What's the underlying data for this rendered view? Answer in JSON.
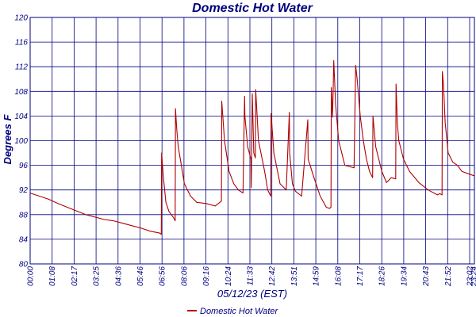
{
  "chart_data": {
    "type": "line",
    "title": "Domestic Hot Water",
    "xlabel": "05/12/23 (EST)",
    "ylabel": "Degrees F",
    "ylim": [
      80,
      120
    ],
    "yticks": [
      80,
      84,
      88,
      92,
      96,
      100,
      104,
      108,
      112,
      116,
      120
    ],
    "xlim_minutes": [
      0,
      1440
    ],
    "xtick_labels": [
      "00:00",
      "01:08",
      "02:17",
      "03:25",
      "04:36",
      "05:46",
      "06:56",
      "08:06",
      "09:16",
      "10:24",
      "11:33",
      "12:42",
      "13:51",
      "14:59",
      "16:08",
      "17:17",
      "18:26",
      "19:34",
      "20:43",
      "21:52",
      "23:02",
      "23:24"
    ],
    "grid": true,
    "legend_position": "bottom-center",
    "colors": {
      "series": "#b00000",
      "grid": "#00007f",
      "text": "#00007f"
    },
    "series": [
      {
        "name": "Domestic Hot Water",
        "x": [
          "00:00",
          "00:30",
          "01:00",
          "01:30",
          "02:00",
          "02:30",
          "03:00",
          "03:30",
          "04:00",
          "04:30",
          "05:00",
          "05:30",
          "06:00",
          "06:30",
          "07:00",
          "07:05",
          "07:06",
          "07:12",
          "07:20",
          "07:30",
          "07:45",
          "07:50",
          "07:51",
          "07:55",
          "08:00",
          "08:10",
          "08:20",
          "08:40",
          "09:00",
          "09:30",
          "10:00",
          "10:20",
          "10:21",
          "10:30",
          "10:45",
          "11:00",
          "11:15",
          "11:30",
          "11:35",
          "11:36",
          "11:45",
          "11:56",
          "11:57",
          "12:00",
          "12:05",
          "12:10",
          "12:11",
          "12:20",
          "12:40",
          "12:50",
          "13:00",
          "13:01",
          "13:10",
          "13:30",
          "13:50",
          "14:00",
          "14:01",
          "14:10",
          "14:20",
          "14:40",
          "15:00",
          "15:01",
          "15:20",
          "15:40",
          "16:00",
          "16:10",
          "16:15",
          "16:16",
          "16:20",
          "16:22",
          "16:24",
          "16:30",
          "16:40",
          "17:00",
          "17:30",
          "17:35",
          "17:40",
          "17:50",
          "18:00",
          "18:10",
          "18:20",
          "18:30",
          "18:31",
          "18:40",
          "18:55",
          "19:00",
          "19:15",
          "19:30",
          "19:45",
          "19:46",
          "19:50",
          "19:55",
          "20:10",
          "20:30",
          "21:00",
          "21:30",
          "22:00",
          "22:08",
          "22:15",
          "22:16",
          "22:20",
          "22:25",
          "22:35",
          "22:50",
          "23:05",
          "23:20",
          "23:59"
        ],
        "y": [
          91.5,
          91,
          90.5,
          89.8,
          89.2,
          88.6,
          88,
          87.6,
          87.2,
          87,
          86.6,
          86.2,
          85.8,
          85.3,
          85,
          84.8,
          98,
          94,
          90,
          88.5,
          87.5,
          87,
          105.2,
          102,
          99,
          96,
          93,
          91,
          90,
          89.8,
          89.4,
          90.2,
          106.4,
          100,
          95,
          93,
          92,
          91.5,
          107.2,
          104,
          99,
          97,
          92.4,
          107.6,
          98,
          97.2,
          108.3,
          100,
          95,
          92,
          91,
          104.4,
          98,
          93,
          92,
          104.6,
          98,
          93,
          91.8,
          91,
          103.4,
          97,
          94,
          91,
          89.2,
          89,
          89.2,
          108.6,
          103.8,
          107.8,
          113,
          106,
          100,
          96,
          95.6,
          112.2,
          110,
          104,
          100,
          97,
          95,
          94,
          104,
          99,
          96,
          95,
          93.2,
          94,
          93.8,
          109.2,
          103,
          100,
          97,
          95,
          93.2,
          92,
          91.2,
          91.4,
          91.2,
          111.2,
          109,
          103,
          98,
          96.5,
          96,
          95,
          94.3
        ]
      }
    ]
  }
}
